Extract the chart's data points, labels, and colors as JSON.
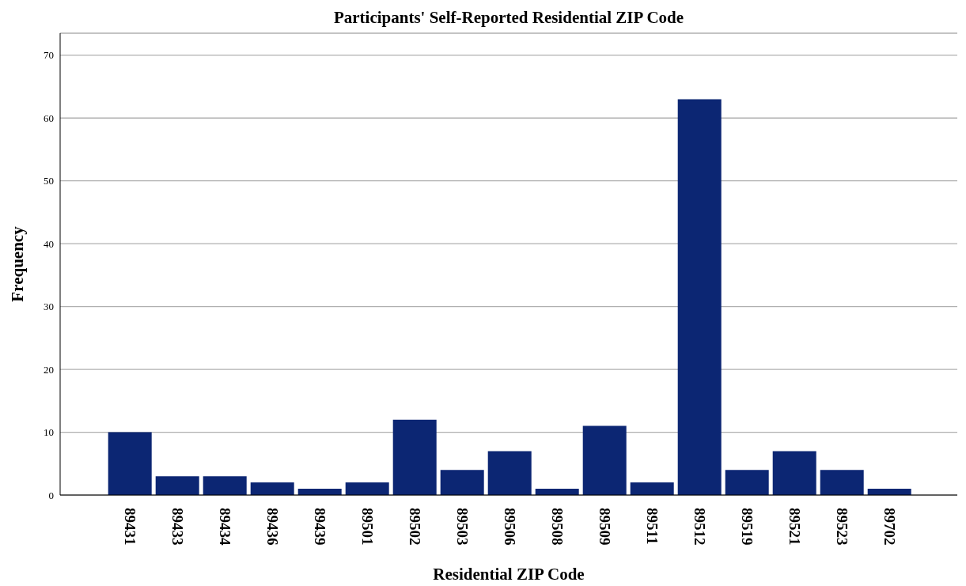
{
  "chart_data": {
    "type": "bar",
    "title": "Participants' Self-Reported Residential ZIP Code",
    "xlabel": "Residential ZIP Code",
    "ylabel": "Frequency",
    "categories": [
      "89431",
      "89433",
      "89434",
      "89436",
      "89439",
      "89501",
      "89502",
      "89503",
      "89506",
      "89508",
      "89509",
      "89511",
      "89512",
      "89519",
      "89521",
      "89523",
      "89702"
    ],
    "values": [
      10,
      3,
      3,
      2,
      1,
      2,
      12,
      4,
      7,
      1,
      11,
      2,
      63,
      4,
      7,
      4,
      1
    ],
    "color": "#0c2673",
    "ylim": [
      0,
      73.5
    ],
    "yticks": [
      0,
      10,
      20,
      30,
      40,
      50,
      60,
      70
    ],
    "grid": "y",
    "legend": false
  }
}
